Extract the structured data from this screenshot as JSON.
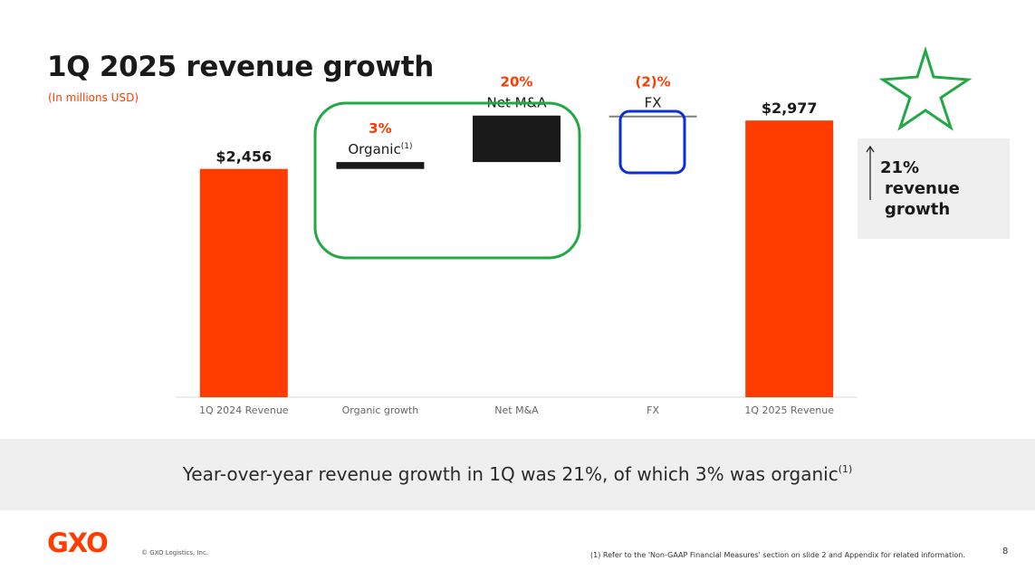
{
  "slide": {
    "title": "1Q 2025 revenue growth",
    "subtitle": "(In millions USD)",
    "callout": {
      "line1": "21%",
      "line2": "revenue",
      "line3": "growth"
    },
    "banner": {
      "text": "Year-over-year revenue growth in 1Q was 21%, of which 3% was organic",
      "sup": "(1)"
    },
    "logo": "GXO",
    "copyright": "© GXO Logistics, Inc.",
    "footnote": "(1) Refer to the 'Non-GAAP Financial Measures' section on slide 2 and Appendix for related information.",
    "page_number": "8"
  },
  "colors": {
    "accent": "#ff3c00",
    "dark_bar": "#1a1a1a",
    "fx_bar": "#7f7f7f",
    "green_annotation": "#22a844",
    "blue_annotation": "#0a2fd6",
    "callout_bg": "#efefef"
  },
  "icons": {
    "star": "star-outline-icon",
    "arrow": "up-arrow-icon"
  },
  "chart_data": {
    "type": "bar",
    "subtype": "waterfall",
    "categories": [
      "1Q 2024 Revenue",
      "Organic growth",
      "Net M&A",
      "FX",
      "1Q 2025 Revenue"
    ],
    "bars": [
      {
        "category": "1Q 2024 Revenue",
        "kind": "total",
        "start": 0,
        "end": 2456,
        "label": "$2,456",
        "color": "#ff3c00"
      },
      {
        "category": "Organic growth",
        "kind": "delta",
        "start": 2456,
        "end": 2530,
        "label_pct": "3%",
        "label_name": "Organic",
        "label_sup": "(1)",
        "color": "#1a1a1a"
      },
      {
        "category": "Net M&A",
        "kind": "delta",
        "start": 2530,
        "end": 3030,
        "label_pct": "20%",
        "label_name": "Net M&A",
        "color": "#1a1a1a"
      },
      {
        "category": "FX",
        "kind": "delta",
        "start": 3030,
        "end": 2977,
        "label_pct": "(2)%",
        "label_name": "FX",
        "color": "#7f7f7f"
      },
      {
        "category": "1Q 2025 Revenue",
        "kind": "total",
        "start": 0,
        "end": 2977,
        "label": "$2,977",
        "color": "#ff3c00"
      }
    ],
    "title": "",
    "xlabel": "",
    "ylabel": "",
    "ylim": [
      0,
      3300
    ],
    "grid": false,
    "legend": "none"
  }
}
